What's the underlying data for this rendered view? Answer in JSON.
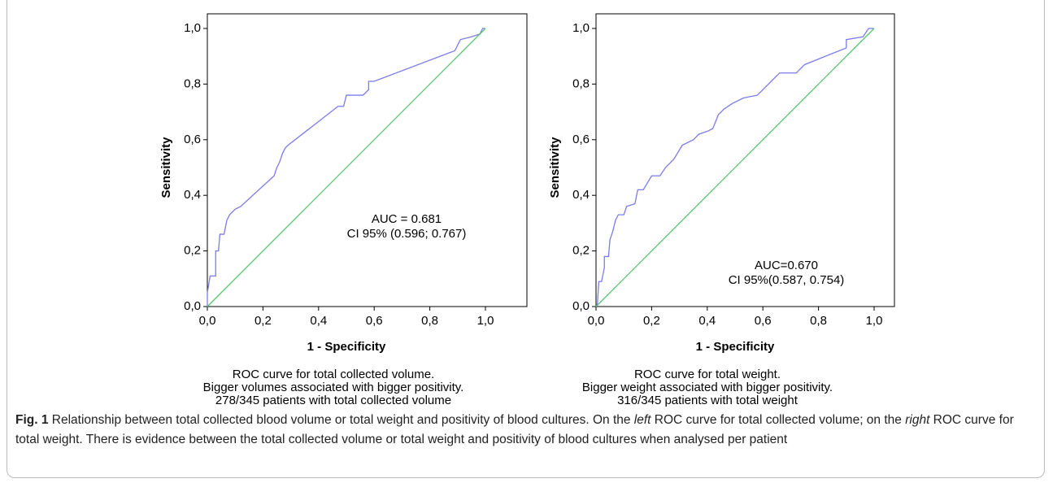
{
  "chart_data": [
    {
      "type": "line",
      "xlabel": "1 - Specificity",
      "ylabel": "Sensitivity",
      "xlim": [
        0,
        1
      ],
      "ylim": [
        0,
        1
      ],
      "xticks": [
        {
          "value": 0,
          "label": "0,0"
        },
        {
          "value": 0.2,
          "label": "0,2"
        },
        {
          "value": 0.4,
          "label": "0,4"
        },
        {
          "value": 0.6,
          "label": "0,6"
        },
        {
          "value": 0.8,
          "label": "0,8"
        },
        {
          "value": 1,
          "label": "1,0"
        }
      ],
      "yticks": [
        {
          "value": 0,
          "label": "0,0"
        },
        {
          "value": 0.2,
          "label": "0,2"
        },
        {
          "value": 0.4,
          "label": "0,4"
        },
        {
          "value": 0.6,
          "label": "0,6"
        },
        {
          "value": 0.8,
          "label": "0,8"
        },
        {
          "value": 1,
          "label": "1,0"
        }
      ],
      "annotations": [
        "AUC = 0.681",
        "CI 95% (0.596; 0.767)"
      ],
      "notes": [
        "ROC curve for total collected volume.",
        "Bigger volumes associated with bigger positivity.",
        "278/345 patients with total collected volume"
      ],
      "series": [
        {
          "color": "#7b7bf0",
          "x": [
            0,
            0,
            0.01,
            0.03,
            0.03,
            0.04,
            0.045,
            0.06,
            0.07,
            0.08,
            0.1,
            0.12,
            0.24,
            0.25,
            0.26,
            0.27,
            0.28,
            0.29,
            0.47,
            0.49,
            0.5,
            0.56,
            0.58,
            0.58,
            0.6,
            0.89,
            0.91,
            0.95,
            0.98,
            0.99,
            1
          ],
          "values": [
            0,
            0.05,
            0.11,
            0.11,
            0.2,
            0.2,
            0.26,
            0.26,
            0.31,
            0.33,
            0.35,
            0.36,
            0.47,
            0.5,
            0.52,
            0.55,
            0.57,
            0.58,
            0.72,
            0.72,
            0.76,
            0.76,
            0.78,
            0.81,
            0.81,
            0.92,
            0.96,
            0.97,
            0.98,
            1,
            1
          ]
        },
        {
          "color": "#55c86e",
          "x": [
            0,
            1
          ],
          "values": [
            0,
            1
          ]
        }
      ]
    },
    {
      "type": "line",
      "xlabel": "1 - Specificity",
      "ylabel": "Sensitivity",
      "xlim": [
        0,
        1
      ],
      "ylim": [
        0,
        1
      ],
      "xticks": [
        {
          "value": 0,
          "label": "0,0"
        },
        {
          "value": 0.2,
          "label": "0,2"
        },
        {
          "value": 0.4,
          "label": "0,4"
        },
        {
          "value": 0.6,
          "label": "0,6"
        },
        {
          "value": 0.8,
          "label": "0,8"
        },
        {
          "value": 1,
          "label": "1,0"
        }
      ],
      "yticks": [
        {
          "value": 0,
          "label": "0,0"
        },
        {
          "value": 0.2,
          "label": "0,2"
        },
        {
          "value": 0.4,
          "label": "0,4"
        },
        {
          "value": 0.6,
          "label": "0,6"
        },
        {
          "value": 0.8,
          "label": "0,8"
        },
        {
          "value": 1,
          "label": "1,0"
        }
      ],
      "annotations": [
        "AUC=0.670",
        "CI 95%(0.587, 0.754)"
      ],
      "notes": [
        "ROC curve for total weight.",
        "Bigger weight associated with bigger positivity.",
        "316/345 patients with total weight"
      ],
      "series": [
        {
          "color": "#7b7bf0",
          "x": [
            0,
            0.005,
            0.01,
            0.02,
            0.03,
            0.03,
            0.045,
            0.05,
            0.06,
            0.07,
            0.08,
            0.1,
            0.11,
            0.14,
            0.15,
            0.17,
            0.2,
            0.23,
            0.25,
            0.28,
            0.31,
            0.35,
            0.37,
            0.4,
            0.42,
            0.44,
            0.46,
            0.49,
            0.53,
            0.58,
            0.63,
            0.66,
            0.72,
            0.75,
            0.8,
            0.85,
            0.9,
            0.9,
            0.96,
            0.98,
            1
          ],
          "values": [
            0,
            0.01,
            0.09,
            0.09,
            0.14,
            0.18,
            0.18,
            0.24,
            0.27,
            0.31,
            0.33,
            0.33,
            0.36,
            0.37,
            0.42,
            0.42,
            0.47,
            0.47,
            0.5,
            0.53,
            0.58,
            0.6,
            0.62,
            0.63,
            0.64,
            0.69,
            0.71,
            0.73,
            0.75,
            0.76,
            0.81,
            0.84,
            0.84,
            0.87,
            0.89,
            0.91,
            0.93,
            0.96,
            0.97,
            1,
            1
          ]
        },
        {
          "color": "#55c86e",
          "x": [
            0,
            1
          ],
          "values": [
            0,
            1
          ]
        }
      ]
    }
  ],
  "caption": [
    "Fig. 1",
    " Relationship between total collected blood volume or total weight and positivity of blood cultures. On the ",
    "left",
    " ROC curve for total collected volume; on the ",
    "right",
    " ROC curve for total weight. There is evidence between the total collected volume or total weight and positivity of blood cultures when analysed per patient"
  ]
}
